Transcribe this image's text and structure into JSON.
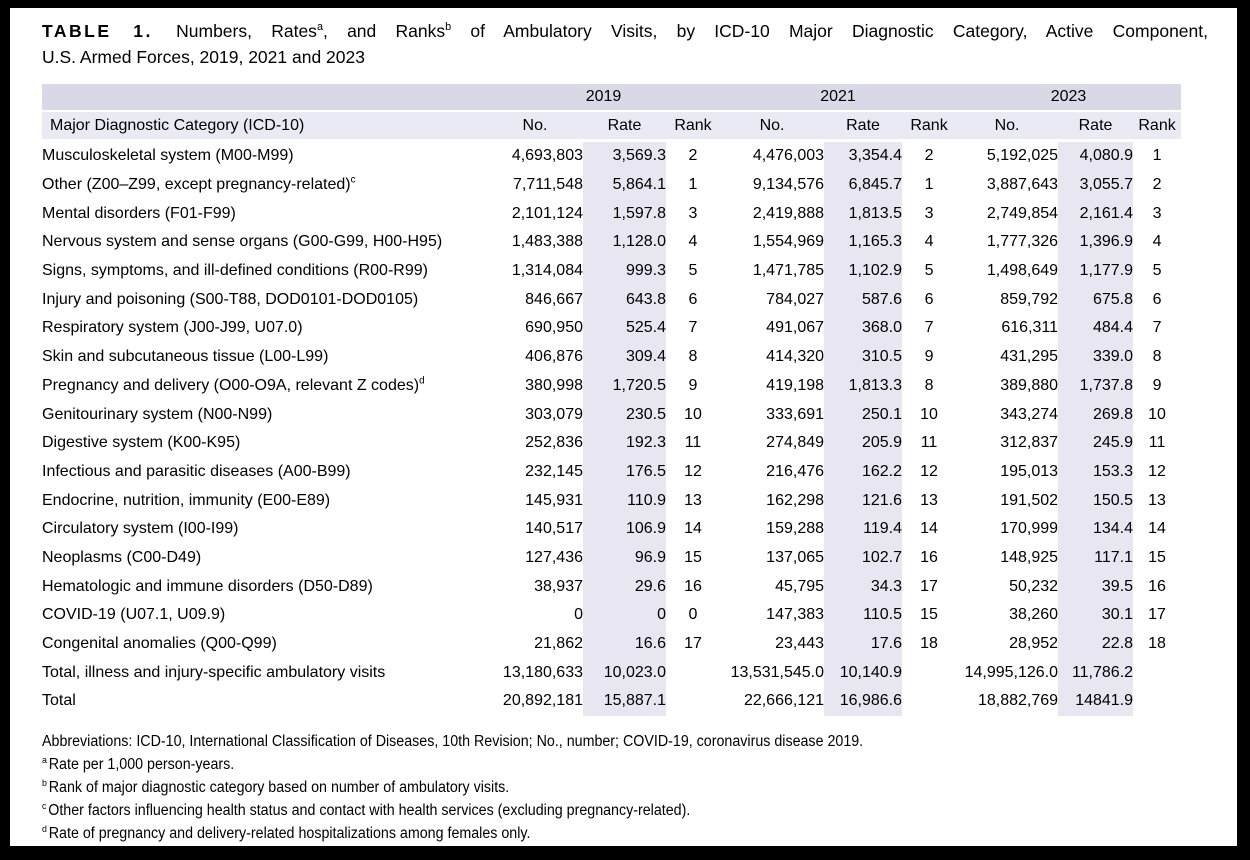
{
  "colors": {
    "frame": "#000000",
    "page_bg": "#ffffff",
    "year_row_bg": "#d9d8e7",
    "header_row_bg": "#eaeaf4",
    "rate_band_bg": "#e7e6f1",
    "text": "#000000"
  },
  "title": {
    "label": "TABLE 1.",
    "line1_seg1": "Numbers, Rates",
    "line1_sup1": "a",
    "line1_seg2": ", and Ranks",
    "line1_sup2": "b",
    "line1_seg3": " of Ambulatory Visits, by ICD-10 Major Diagnostic Category, Active Component,",
    "line2": "U.S. Armed Forces, 2019, 2021 and 2023"
  },
  "table": {
    "year_headers": [
      "2019",
      "2021",
      "2023"
    ],
    "category_header": "Major Diagnostic Category (ICD-10)",
    "sub_headers": [
      "No.",
      "Rate",
      "Rank"
    ],
    "rows": [
      {
        "name": "Musculoskeletal system (M00-M99)",
        "sup": "",
        "values": [
          "4,693,803",
          "3,569.3",
          "2",
          "4,476,003",
          "3,354.4",
          "2",
          "5,192,025",
          "4,080.9",
          "1"
        ]
      },
      {
        "name": "Other (Z00–Z99, except pregnancy-related)",
        "sup": "c",
        "values": [
          "7,711,548",
          "5,864.1",
          "1",
          "9,134,576",
          "6,845.7",
          "1",
          "3,887,643",
          "3,055.7",
          "2"
        ]
      },
      {
        "name": "Mental disorders (F01-F99)",
        "sup": "",
        "values": [
          "2,101,124",
          "1,597.8",
          "3",
          "2,419,888",
          "1,813.5",
          "3",
          "2,749,854",
          "2,161.4",
          "3"
        ]
      },
      {
        "name": "Nervous system and sense organs (G00-G99, H00-H95)",
        "sup": "",
        "values": [
          "1,483,388",
          "1,128.0",
          "4",
          "1,554,969",
          "1,165.3",
          "4",
          "1,777,326",
          "1,396.9",
          "4"
        ]
      },
      {
        "name": "Signs, symptoms, and ill-defined conditions (R00-R99)",
        "sup": "",
        "values": [
          "1,314,084",
          "999.3",
          "5",
          "1,471,785",
          "1,102.9",
          "5",
          "1,498,649",
          "1,177.9",
          "5"
        ]
      },
      {
        "name": "Injury and poisoning (S00-T88, DOD0101-DOD0105)",
        "sup": "",
        "values": [
          "846,667",
          "643.8",
          "6",
          "784,027",
          "587.6",
          "6",
          "859,792",
          "675.8",
          "6"
        ]
      },
      {
        "name": "Respiratory system (J00-J99, U07.0)",
        "sup": "",
        "values": [
          "690,950",
          "525.4",
          "7",
          "491,067",
          "368.0",
          "7",
          "616,311",
          "484.4",
          "7"
        ]
      },
      {
        "name": "Skin and subcutaneous tissue (L00-L99)",
        "sup": "",
        "values": [
          "406,876",
          "309.4",
          "8",
          "414,320",
          "310.5",
          "9",
          "431,295",
          "339.0",
          "8"
        ]
      },
      {
        "name": "Pregnancy and delivery (O00-O9A, relevant Z codes)",
        "sup": "d",
        "values": [
          "380,998",
          "1,720.5",
          "9",
          "419,198",
          "1,813.3",
          "8",
          "389,880",
          "1,737.8",
          "9"
        ]
      },
      {
        "name": "Genitourinary system (N00-N99)",
        "sup": "",
        "values": [
          "303,079",
          "230.5",
          "10",
          "333,691",
          "250.1",
          "10",
          "343,274",
          "269.8",
          "10"
        ]
      },
      {
        "name": "Digestive system (K00-K95)",
        "sup": "",
        "values": [
          "252,836",
          "192.3",
          "11",
          "274,849",
          "205.9",
          "11",
          "312,837",
          "245.9",
          "11"
        ]
      },
      {
        "name": "Infectious and parasitic diseases (A00-B99)",
        "sup": "",
        "values": [
          "232,145",
          "176.5",
          "12",
          "216,476",
          "162.2",
          "12",
          "195,013",
          "153.3",
          "12"
        ]
      },
      {
        "name": "Endocrine, nutrition, immunity (E00-E89)",
        "sup": "",
        "values": [
          "145,931",
          "110.9",
          "13",
          "162,298",
          "121.6",
          "13",
          "191,502",
          "150.5",
          "13"
        ]
      },
      {
        "name": "Circulatory system (I00-I99)",
        "sup": "",
        "values": [
          "140,517",
          "106.9",
          "14",
          "159,288",
          "119.4",
          "14",
          "170,999",
          "134.4",
          "14"
        ]
      },
      {
        "name": "Neoplasms (C00-D49)",
        "sup": "",
        "values": [
          "127,436",
          "96.9",
          "15",
          "137,065",
          "102.7",
          "16",
          "148,925",
          "117.1",
          "15"
        ]
      },
      {
        "name": "Hematologic and immune disorders (D50-D89)",
        "sup": "",
        "values": [
          "38,937",
          "29.6",
          "16",
          "45,795",
          "34.3",
          "17",
          "50,232",
          "39.5",
          "16"
        ]
      },
      {
        "name": "COVID-19 (U07.1, U09.9)",
        "sup": "",
        "values": [
          "0",
          "0",
          "0",
          "147,383",
          "110.5",
          "15",
          "38,260",
          "30.1",
          "17"
        ]
      },
      {
        "name": "Congenital anomalies (Q00-Q99)",
        "sup": "",
        "values": [
          "21,862",
          "16.6",
          "17",
          "23,443",
          "17.6",
          "18",
          "28,952",
          "22.8",
          "18"
        ]
      },
      {
        "name": "Total, illness and injury-specific ambulatory visits",
        "sup": "",
        "values": [
          "13,180,633",
          "10,023.0",
          "",
          "13,531,545.0",
          "10,140.9",
          "",
          "14,995,126.0",
          "11,786.2",
          ""
        ]
      },
      {
        "name": "Total",
        "sup": "",
        "values": [
          "20,892,181",
          "15,887.1",
          "",
          "22,666,121",
          "16,986.6",
          "",
          "18,882,769",
          "14841.9",
          ""
        ]
      }
    ]
  },
  "footnotes": {
    "abbreviations": "Abbreviations: ICD-10, International Classification of Diseases, 10th Revision; No., number; COVID-19, coronavirus disease 2019.",
    "notes": [
      {
        "marker": "a",
        "text": "Rate per 1,000 person-years."
      },
      {
        "marker": "b",
        "text": "Rank of major diagnostic category based on number of ambulatory visits."
      },
      {
        "marker": "c",
        "text": "Other factors influencing health status and contact with health services (excluding pregnancy-related)."
      },
      {
        "marker": "d",
        "text": "Rate of pregnancy and delivery-related hospitalizations among females only."
      }
    ]
  }
}
